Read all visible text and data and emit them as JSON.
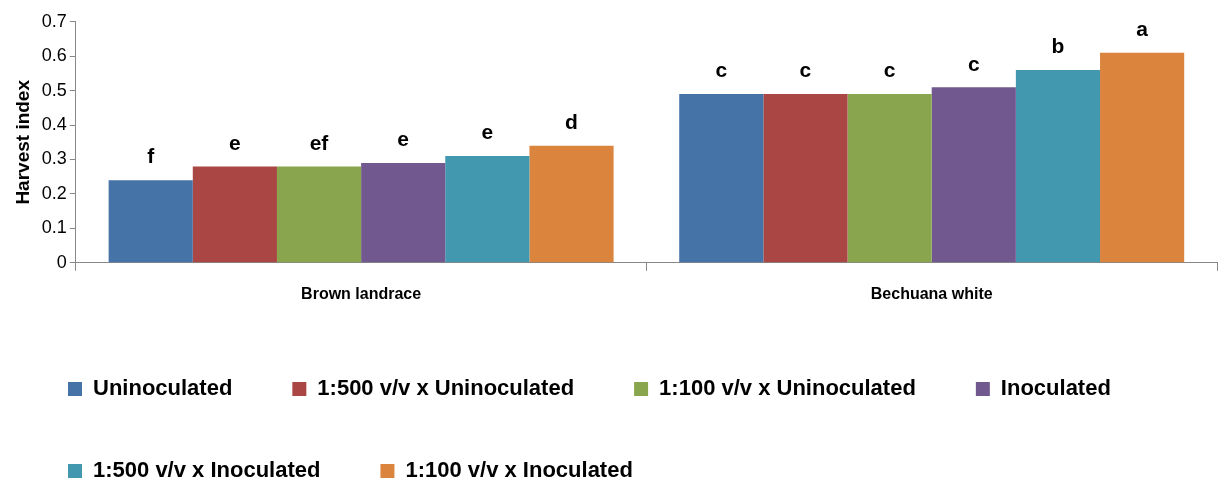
{
  "chart_data": {
    "type": "bar",
    "ylabel": "Harvest index",
    "categories": [
      "Brown landrace",
      "Bechuana white"
    ],
    "series": [
      {
        "name": "Uninoculated",
        "color": "#4572a7",
        "values": [
          0.24,
          0.49
        ],
        "value_labels": [
          "f",
          "c"
        ]
      },
      {
        "name": "1:500 v/v x Uninoculated",
        "color": "#aa4643",
        "values": [
          0.28,
          0.49
        ],
        "value_labels": [
          "e",
          "c"
        ]
      },
      {
        "name": "1:100 v/v x Uninoculated",
        "color": "#89a54e",
        "values": [
          0.28,
          0.49
        ],
        "value_labels": [
          "ef",
          "c"
        ]
      },
      {
        "name": "Inoculated",
        "color": "#71588f",
        "values": [
          0.29,
          0.51
        ],
        "value_labels": [
          "e",
          "c"
        ]
      },
      {
        "name": "1:500 v/v x Inoculated",
        "color": "#4198af",
        "values": [
          0.31,
          0.56
        ],
        "value_labels": [
          "e",
          "b"
        ]
      },
      {
        "name": "1:100 v/v x Inoculated",
        "color": "#db843d",
        "values": [
          0.34,
          0.61
        ],
        "value_labels": [
          "d",
          "a"
        ]
      }
    ],
    "ylim": [
      0,
      0.7
    ],
    "yticks": [
      0,
      0.1,
      0.2,
      0.3,
      0.4,
      0.5,
      0.6,
      0.7
    ],
    "grid": false,
    "legend": "bottom"
  }
}
